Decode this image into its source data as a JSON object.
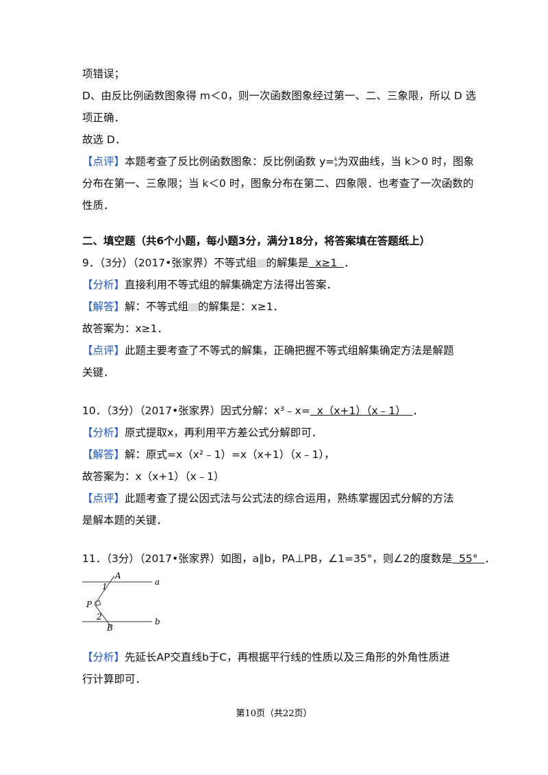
{
  "lines": [
    {
      "text": "项错误；"
    },
    {
      "text": "D、由反比例函数图象得 m＜0，则一次函数图象经过第一、二、三象限，所以 D 选"
    },
    {
      "text": "项正确．"
    },
    {
      "text": "故选 D．"
    },
    {
      "tag": "【点评】",
      "text": "本题考查了反比例函数图象：反比例函数 y=",
      "fraction": {
        "num": "k",
        "den": "x"
      },
      "after": "为双曲线，当 k＞0 时，图象"
    },
    {
      "text": "分布在第一、三象限；当 k＜0 时，图象分布在第二、四象限．也考查了一次函数的"
    },
    {
      "text": "性质．"
    },
    {
      "heading": "二、填空题（共6个小题，每小题3分，满分18分，将答案填在答题纸上）"
    },
    {
      "text": "9．（3分）（2017•张家界）不等式组",
      "blank": true,
      "after": "的解集是",
      "answer": "  x≥1  ",
      "end": "．"
    },
    {
      "tag": "【分析】",
      "text": "直接利用不等式组的解集确定方法得出答案．"
    },
    {
      "tag": "【解答】",
      "text": "解：不等式组",
      "blank": true,
      "after": "的解集是：x≥1．"
    },
    {
      "text": "故答案为：x≥1．"
    },
    {
      "tag": "【点评】",
      "text": "此题主要考查了不等式的解集，正确把握不等式组解集确定方法是解题"
    },
    {
      "text": "关键．"
    },
    {
      "text": "10．（3分）（2017•张家界）因式分解：x³﹣x=",
      "answer": "  x（x+1）（x﹣1）  ",
      "end": "．"
    },
    {
      "tag": "【分析】",
      "text": "原式提取x，再利用平方差公式分解即可．"
    },
    {
      "tag": "【解答】",
      "text": "解：原式=x（x²﹣1）=x（x+1）（x﹣1），"
    },
    {
      "text": "故答案为：x（x+1）（x﹣1）"
    },
    {
      "tag": "【点评】",
      "text": "此题考查了提公因式法与公式法的综合运用，熟练掌握因式分解的方法"
    },
    {
      "text": "是解本题的关键．"
    },
    {
      "text": "11．（3分）（2017•张家界）如图，a∥b，PA⊥PB，∠1=35°，则∠2的度数是",
      "answer": "  55°  ",
      "end": "．"
    },
    {
      "tag": "【分析】",
      "text": "先延长AP交直线b于C，再根据平行线的性质以及三角形的外角性质进"
    },
    {
      "text": "行计算即可．"
    }
  ],
  "figure": {
    "labels": [
      "A",
      "1",
      "a",
      "P",
      "2",
      "B",
      "b"
    ]
  },
  "footer": "第10页（共22页）"
}
